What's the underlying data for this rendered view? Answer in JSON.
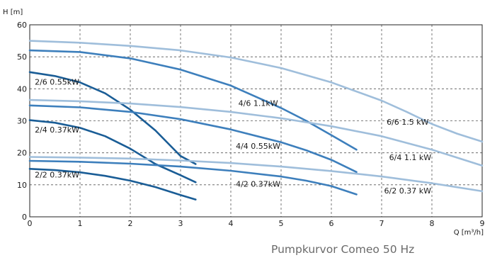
{
  "caption": "Pumpkurvor Comeo 50 Hz",
  "chart_data": {
    "type": "line",
    "title": "",
    "xlabel": "Q [m³/h]",
    "ylabel": "H [m]",
    "xlim": [
      0,
      9
    ],
    "ylim": [
      0,
      60
    ],
    "x_ticks": [
      "0",
      "1",
      "2",
      "3",
      "4",
      "5",
      "6",
      "7",
      "8",
      "9"
    ],
    "y_ticks": [
      "0",
      "10",
      "20",
      "30",
      "40",
      "50",
      "60"
    ],
    "grid": true,
    "grid_style": "dashed",
    "series": [
      {
        "name": "2/6 0.55kW",
        "color": "#1a5d96",
        "x": [
          0,
          0.5,
          1,
          1.5,
          2,
          2.5,
          3,
          3.3
        ],
        "y": [
          45.2,
          44,
          42,
          38.6,
          33.5,
          27,
          19,
          16.5
        ]
      },
      {
        "name": "2/4 0.37kW",
        "color": "#1a5d96",
        "x": [
          0,
          0.5,
          1,
          1.5,
          2,
          2.5,
          3,
          3.3
        ],
        "y": [
          30.2,
          29.4,
          27.8,
          25.2,
          21.3,
          16.5,
          13,
          10.8
        ]
      },
      {
        "name": "2/2 0.37kW",
        "color": "#1a5d96",
        "x": [
          0,
          0.5,
          1,
          1.5,
          2,
          2.5,
          3,
          3.3
        ],
        "y": [
          15,
          14.6,
          13.9,
          12.8,
          11.3,
          9.3,
          6.8,
          5.4
        ]
      },
      {
        "name": "4/6 1.1kW",
        "color": "#3d7fbc",
        "x": [
          0,
          1,
          2,
          3,
          4,
          5,
          5.5,
          6,
          6.5
        ],
        "y": [
          52,
          51.5,
          49.5,
          46,
          41,
          34,
          30,
          25.5,
          21
        ]
      },
      {
        "name": "4/4 0.55kW",
        "color": "#3d7fbc",
        "x": [
          0,
          1,
          2,
          3,
          4,
          5,
          5.5,
          6,
          6.5
        ],
        "y": [
          34.8,
          34.2,
          32.8,
          30.5,
          27.3,
          23.3,
          20.8,
          17.8,
          14
        ]
      },
      {
        "name": "4/2 0.37kW",
        "color": "#3d7fbc",
        "x": [
          0,
          1,
          2,
          3,
          4,
          5,
          5.5,
          6,
          6.5
        ],
        "y": [
          17.5,
          17.2,
          16.6,
          15.7,
          14.4,
          12.6,
          11.3,
          9.6,
          7
        ]
      },
      {
        "name": "6/6 1.5 kW",
        "color": "#9fbedb",
        "x": [
          0,
          1,
          2,
          3,
          4,
          5,
          6,
          7,
          7.5,
          8,
          8.5,
          9
        ],
        "y": [
          55,
          54.4,
          53.4,
          52,
          49.8,
          46.5,
          42,
          36.3,
          32.8,
          29,
          26,
          23.5
        ]
      },
      {
        "name": "6/4 1.1 kW",
        "color": "#9fbedb",
        "x": [
          0,
          1,
          2,
          3,
          4,
          5,
          6,
          7,
          8,
          9
        ],
        "y": [
          36.5,
          36.1,
          35.4,
          34.3,
          32.8,
          30.8,
          28.3,
          25.2,
          21,
          16
        ]
      },
      {
        "name": "6/2 0.37 kW",
        "color": "#9fbedb",
        "x": [
          0,
          1,
          2,
          3,
          4,
          5,
          6,
          7,
          8,
          9
        ],
        "y": [
          18.7,
          18.5,
          18.2,
          17.6,
          16.8,
          15.7,
          14.3,
          12.6,
          10.5,
          8
        ]
      }
    ]
  }
}
